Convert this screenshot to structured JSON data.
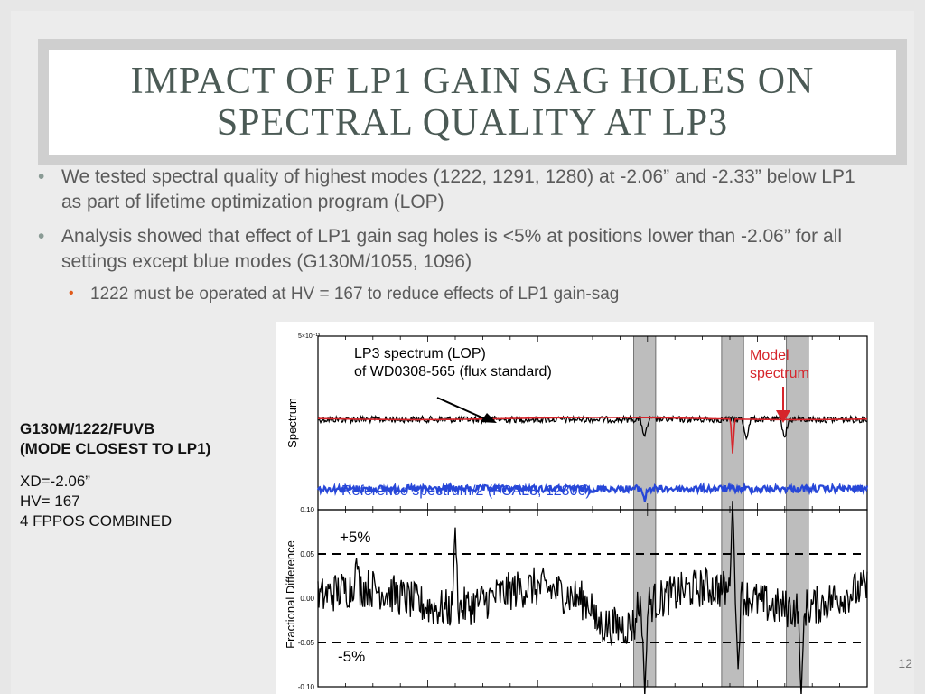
{
  "slide": {
    "title_line1": "IMPACT OF LP1 GAIN SAG HOLES ON",
    "title_line2": "SPECTRAL QUALITY AT LP3",
    "bullets": [
      "We tested spectral quality of highest modes (1222, 1291, 1280) at -2.06” and -2.33” below LP1 as part of lifetime optimization program (LOP)",
      "Analysis showed that effect of LP1 gain sag holes is <5% at positions lower than -2.06” for all settings except blue modes (G130M/1055, 1096)"
    ],
    "sub_bullet": "1222 must be operated at HV = 167 to reduce effects of LP1 gain-sag",
    "side_heading_1": "G130M/1222/FUVB",
    "side_heading_2": "(MODE CLOSEST TO LP1)",
    "side_line_1": "XD=-2.06”",
    "side_line_2": "HV= 167",
    "side_line_3": "4 FPPOS COMBINED",
    "page_number": "12"
  },
  "colors": {
    "lop": "#000000",
    "model": "#d6252b",
    "reference": "#2747d8",
    "band": "#bdbdbd"
  },
  "chart_data": [
    {
      "type": "line",
      "ylabel": "Spectrum",
      "ytick_top": "5×10⁻¹³",
      "annotations": {
        "lop_label_1": "LP3 spectrum (LOP)",
        "lop_label_2": "of WD0308-565 (flux standard)",
        "model_label_1": "Model",
        "model_label_2": "spectrum",
        "reference_label": "Reference spectrum/2 (FCAL3, 12806)"
      },
      "shaded_regions": [
        [
          0.575,
          0.615
        ],
        [
          0.735,
          0.775
        ],
        [
          0.853,
          0.893
        ]
      ],
      "series": [
        {
          "label": "LP3 spectrum (LOP) of WD0308-565 (flux standard)",
          "level": 0.52,
          "dips": [
            0.595,
            0.78,
            0.85
          ]
        },
        {
          "label": "Model spectrum",
          "level": 0.52,
          "dips": [
            0.755
          ]
        },
        {
          "label": "Reference spectrum/2 (FCAL3, 12806)",
          "level": 0.12,
          "dips": [
            0.595
          ]
        }
      ]
    },
    {
      "type": "line",
      "ylabel": "Fractional Difference",
      "ylim": [
        -0.1,
        0.1
      ],
      "yticks": [
        "0.10",
        "0.05",
        "0.00",
        "-0.05",
        "-0.10"
      ],
      "reference_lines": [
        0.05,
        -0.05
      ],
      "reference_labels": [
        "+5%",
        "-5%"
      ],
      "shaded_regions": [
        [
          0.575,
          0.615
        ],
        [
          0.735,
          0.775
        ],
        [
          0.853,
          0.893
        ]
      ],
      "features": [
        {
          "x": 0.07,
          "y": 0.045
        },
        {
          "x": 0.25,
          "y": 0.08
        },
        {
          "x": 0.595,
          "y": -0.11
        },
        {
          "x": 0.755,
          "y": 0.11
        },
        {
          "x": 0.765,
          "y": -0.08
        },
        {
          "x": 0.88,
          "y": -0.11
        }
      ]
    }
  ]
}
